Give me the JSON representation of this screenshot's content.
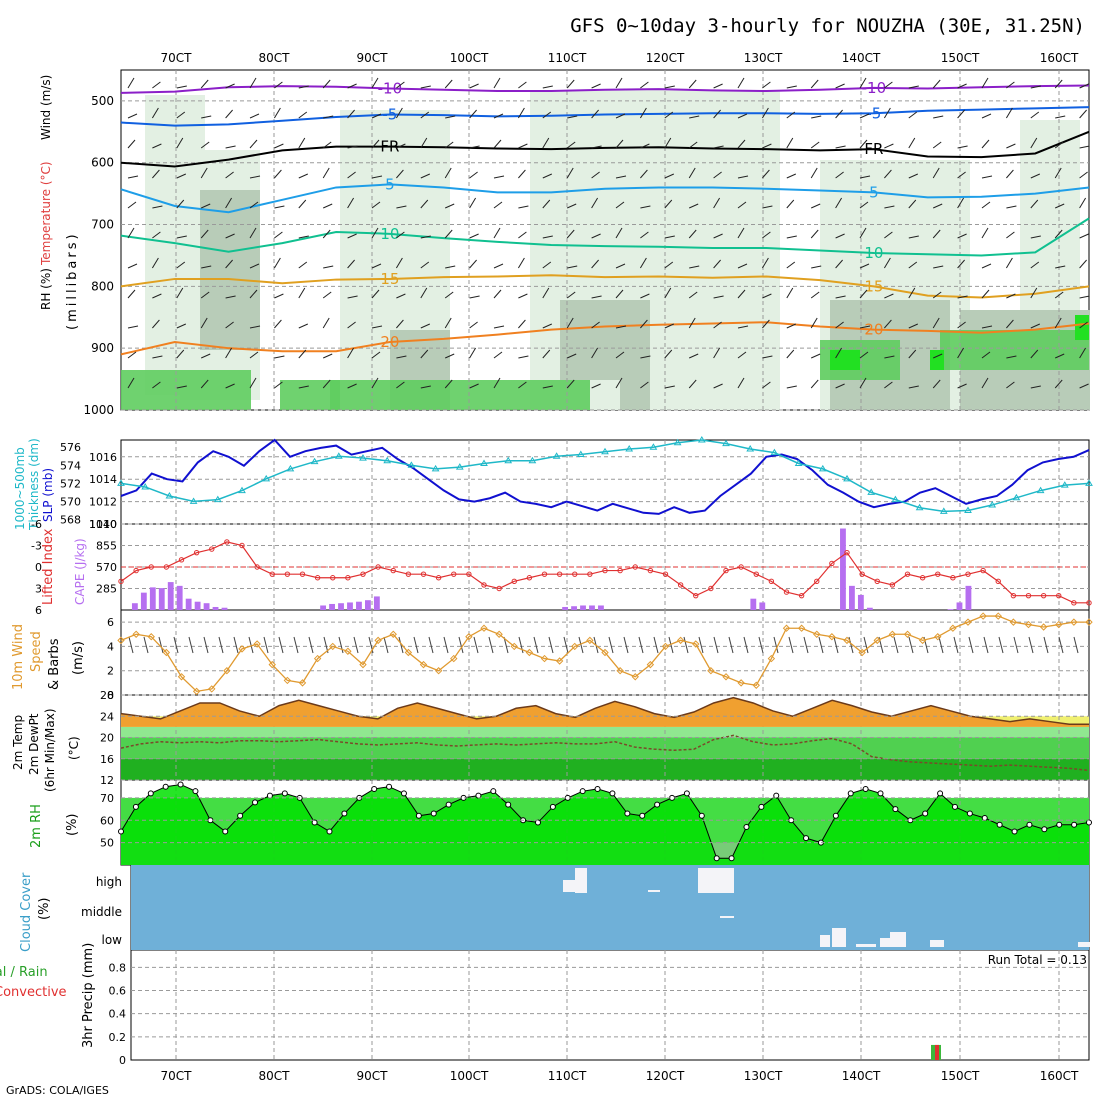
{
  "title": "GFS 0~10day 3-hourly for NOUZHA (30E, 31.25N)",
  "footer": "GrADS: COLA/IGES",
  "x_ticks": [
    "70CT",
    "80CT",
    "90CT",
    "100CT",
    "110CT",
    "120CT",
    "130CT",
    "140CT",
    "150CT",
    "160CT"
  ],
  "colors": {
    "rh_light": "#e3f0e3",
    "rh_mid": "#b8ccb8",
    "rh_green": "#5fcd5f",
    "rh_bright": "#22e022",
    "slp": "#1010d0",
    "thick": "#1fb8c8",
    "lifted": "#e03030",
    "cape": "#b66ff0",
    "wind": "#e09a30",
    "temp": "#f0a030",
    "dew_bands": [
      "#f0f070",
      "#90e890",
      "#50d050",
      "#20b020"
    ],
    "rh2m": [
      "#00e000",
      "#44dd44",
      "#77cc77"
    ],
    "cloud": "#6fb0d8"
  },
  "panels": {
    "profile": {
      "ylabels": [
        "RH (%)",
        "Temperature (°C)",
        "Wind (m/s)",
        "(millibars)"
      ],
      "yticks": [
        "500",
        "600",
        "700",
        "800",
        "900",
        "1000"
      ],
      "contours": [
        {
          "label": "-10",
          "color": "#8b1fc8",
          "level_hpa": [
            487,
            485,
            478,
            476,
            477,
            480,
            482,
            484,
            484,
            482,
            481,
            483,
            484,
            482,
            479,
            480,
            478,
            476,
            475
          ]
        },
        {
          "label": "-5",
          "color": "#1060e0",
          "level_hpa": [
            535,
            540,
            538,
            532,
            526,
            522,
            523,
            525,
            524,
            522,
            521,
            520,
            520,
            521,
            520,
            516,
            514,
            512,
            510
          ]
        },
        {
          "label": "FR",
          "color": "#000000",
          "level_hpa": [
            600,
            606,
            595,
            580,
            574,
            574,
            575,
            577,
            578,
            576,
            575,
            577,
            578,
            580,
            578,
            590,
            591,
            585,
            550
          ]
        },
        {
          "label": "5",
          "color": "#1e9ee8",
          "level_hpa": [
            643,
            670,
            680,
            660,
            640,
            635,
            640,
            648,
            648,
            642,
            640,
            640,
            642,
            645,
            648,
            656,
            655,
            650,
            640
          ]
        },
        {
          "label": "10",
          "color": "#10c090",
          "level_hpa": [
            718,
            730,
            744,
            730,
            712,
            715,
            722,
            728,
            733,
            735,
            736,
            738,
            738,
            742,
            746,
            748,
            750,
            745,
            690
          ]
        },
        {
          "label": "15",
          "color": "#e0a020",
          "level_hpa": [
            800,
            788,
            788,
            795,
            789,
            788,
            785,
            784,
            782,
            785,
            784,
            786,
            784,
            790,
            800,
            815,
            818,
            812,
            800
          ]
        },
        {
          "label": "20",
          "color": "#f08020",
          "level_hpa": [
            910,
            890,
            900,
            905,
            905,
            890,
            885,
            878,
            870,
            865,
            862,
            860,
            858,
            865,
            870,
            872,
            875,
            870,
            860
          ]
        }
      ]
    },
    "slp": {
      "ylabel_left": "Thickness (dm)",
      "ylabel_left2": "1000~500mb",
      "ylabel_right": "SLP (mb)",
      "yticks_thick": [
        "576",
        "574",
        "572",
        "570",
        "568"
      ],
      "yticks_slp": [
        "1016",
        "1014",
        "1012",
        "1010"
      ]
    },
    "cape": {
      "ylabel_left": "Lifted Index",
      "ylabel_right": "CAPE (J/kg)",
      "yticks_li": [
        "-6",
        "-3",
        "0",
        "3",
        "6"
      ],
      "yticks_cape": [
        "1140",
        "855",
        "570",
        "285"
      ]
    },
    "wind10": {
      "ylabel": "10m Wind",
      "ylabel2": "Speed",
      "ylabel3": "& Barbs",
      "ylabel4": "(m/s)",
      "yticks": [
        "6",
        "4",
        "2",
        "0"
      ]
    },
    "temp2m": {
      "ylabel": "2m Temp",
      "ylabel2": "2m DewPt",
      "ylabel3": "(6hr Min/Max)",
      "ylabel4": "(°C)",
      "yticks": [
        "28",
        "24",
        "20",
        "16",
        "12"
      ]
    },
    "rh2m": {
      "ylabel": "2m RH",
      "ylabel2": "(%)",
      "yticks": [
        "70",
        "60",
        "50"
      ]
    },
    "cloud": {
      "ylabel": "Cloud Cover",
      "ylabel2": "(%)",
      "levels": [
        "high",
        "middle",
        "low"
      ]
    },
    "precip": {
      "ylabel": "3hr Precip (mm)",
      "legend_total": "Total / Rain",
      "legend_conv": "Convective",
      "run_total": "Run Total = 0.13",
      "yticks": [
        "0.8",
        "0.6",
        "0.4",
        "0.2",
        "0"
      ]
    }
  },
  "chart_data": [
    {
      "type": "line",
      "title": "1000~500mb Thickness (dm) / SLP (mb)",
      "series": [
        {
          "name": "SLP (mb)",
          "values": [
            1012.5,
            1013.0,
            1014.5,
            1014.0,
            1013.8,
            1015.5,
            1016.5,
            1016.0,
            1015.2,
            1016.5,
            1017.5,
            1016.0,
            1016.5,
            1016.8,
            1017.0,
            1016.2,
            1016.5,
            1016.8,
            1015.8,
            1015.0,
            1014.0,
            1013.0,
            1012.2,
            1012.0,
            1012.3,
            1012.8,
            1012.0,
            1011.8,
            1011.5,
            1012.0,
            1011.6,
            1011.2,
            1011.8,
            1011.4,
            1011.0,
            1010.9,
            1011.5,
            1011.0,
            1011.2,
            1012.5,
            1013.5,
            1014.5,
            1016.0,
            1016.2,
            1015.8,
            1014.8,
            1013.5,
            1012.8,
            1012.0,
            1011.5,
            1011.8,
            1012.0,
            1012.8,
            1013.2,
            1012.5,
            1011.8,
            1012.2,
            1012.5,
            1013.5,
            1014.8,
            1015.5,
            1015.8,
            1016.0,
            1016.6
          ],
          "axis": "right"
        },
        {
          "name": "Thickness (dm)",
          "values": [
            572.0,
            571.6,
            570.6,
            570.0,
            570.2,
            571.2,
            572.5,
            573.6,
            574.4,
            575.0,
            574.8,
            574.5,
            574.0,
            573.6,
            573.8,
            574.2,
            574.5,
            574.5,
            575.0,
            575.2,
            575.5,
            575.8,
            576.0,
            576.5,
            576.8,
            576.4,
            575.8,
            575.4,
            574.2,
            573.6,
            572.5,
            571.0,
            570.2,
            569.3,
            568.9,
            569.0,
            569.6,
            570.4,
            571.2,
            571.8,
            572.0
          ],
          "axis": "left"
        }
      ],
      "ylim_slp": [
        1010,
        1017.5
      ],
      "ylim_thick": [
        567.5,
        576.8
      ]
    },
    {
      "type": "bar",
      "title": "Lifted Index / CAPE (J/kg)",
      "series": [
        {
          "name": "CAPE (J/kg)",
          "values": [
            0,
            90,
            230,
            300,
            290,
            370,
            320,
            150,
            110,
            90,
            40,
            30,
            0,
            0,
            0,
            0,
            0,
            0,
            0,
            0,
            0,
            0,
            60,
            80,
            90,
            100,
            110,
            130,
            180,
            0,
            0,
            0,
            0,
            0,
            0,
            0,
            0,
            0,
            0,
            0,
            0,
            0,
            0,
            0,
            0,
            0,
            0,
            0,
            0,
            40,
            50,
            60,
            60,
            60,
            0,
            0,
            0,
            0,
            0,
            0,
            0,
            0,
            0,
            0,
            0,
            0,
            0,
            0,
            0,
            0,
            150,
            100,
            0,
            0,
            0,
            0,
            0,
            0,
            0,
            0,
            1080,
            320,
            200,
            30,
            0,
            0,
            0,
            0,
            0,
            0,
            0,
            0,
            10,
            100,
            320,
            0,
            0,
            0,
            0,
            0,
            0,
            0,
            0,
            0,
            0,
            0,
            0,
            0
          ]
        },
        {
          "name": "Lifted Index",
          "values": [
            2,
            0.5,
            0,
            0,
            -1,
            -2,
            -2.5,
            -3.5,
            -3,
            0,
            1,
            1,
            1,
            1.5,
            1.5,
            1.5,
            1,
            0,
            0.5,
            1,
            1,
            1.5,
            1,
            1,
            2.5,
            3,
            2,
            1.5,
            1,
            1,
            1,
            1,
            0.5,
            0.5,
            0,
            0.5,
            1,
            2.5,
            4,
            3,
            0.5,
            0,
            1,
            2,
            3.5,
            4,
            2,
            -0.5,
            -2,
            1,
            2,
            2.5,
            1,
            1.5,
            1,
            1.5,
            1,
            0.5,
            2,
            4,
            4,
            4,
            4,
            5,
            5
          ]
        }
      ],
      "ylim_cape": [
        0,
        1140
      ],
      "ylim_li": [
        6,
        -6
      ]
    },
    {
      "type": "line",
      "title": "10m Wind Speed & Barbs (m/s)",
      "series": [
        {
          "name": "Speed",
          "values": [
            4.5,
            5.0,
            4.8,
            3.5,
            1.5,
            0.3,
            0.5,
            2.0,
            3.8,
            4.2,
            2.5,
            1.2,
            1.0,
            3.0,
            4.0,
            3.6,
            2.5,
            4.5,
            5.0,
            3.5,
            2.5,
            2.0,
            3.0,
            4.8,
            5.5,
            5.0,
            4.0,
            3.5,
            3.0,
            2.8,
            4.0,
            4.5,
            3.5,
            2.0,
            1.5,
            2.5,
            4.0,
            4.5,
            4.2,
            2.0,
            1.5,
            1.0,
            0.8,
            3.0,
            5.5,
            5.5,
            5.0,
            4.8,
            4.5,
            3.5,
            4.5,
            5.0,
            5.0,
            4.5,
            4.8,
            5.5,
            6.0,
            6.5,
            6.5,
            6.0,
            5.8,
            5.6,
            5.8,
            6.0,
            6.0
          ]
        }
      ],
      "ylim": [
        0,
        7
      ]
    },
    {
      "type": "area",
      "title": "2m Temp / 2m DewPt (6hr Min/Max) (°C)",
      "series": [
        {
          "name": "2m Temp",
          "values": [
            24.5,
            24.0,
            23.5,
            25.0,
            26.5,
            26.5,
            25.0,
            24.0,
            26.0,
            27.0,
            26.0,
            25.0,
            24.0,
            23.5,
            25.5,
            26.5,
            25.5,
            24.5,
            23.5,
            24.0,
            25.5,
            26.0,
            24.5,
            23.8,
            25.5,
            26.8,
            25.8,
            24.5,
            23.8,
            24.8,
            26.5,
            27.5,
            26.5,
            25.0,
            24.0,
            25.5,
            27.0,
            26.0,
            24.8,
            24.0,
            25.0,
            26.0,
            25.0,
            24.0,
            23.5,
            23.0,
            23.5,
            23.0,
            22.5,
            22.5
          ]
        },
        {
          "name": "2m DewPt",
          "values": [
            18.0,
            18.8,
            19.2,
            19.0,
            19.2,
            19.0,
            19.4,
            19.4,
            19.2,
            19.4,
            19.6,
            19.2,
            18.8,
            18.6,
            18.8,
            19.0,
            18.6,
            18.4,
            18.6,
            18.8,
            18.6,
            18.8,
            19.0,
            18.8,
            18.8,
            19.2,
            18.2,
            17.8,
            17.6,
            17.8,
            19.6,
            20.4,
            19.2,
            18.6,
            18.8,
            19.4,
            19.8,
            18.8,
            16.4,
            15.8,
            15.4,
            15.2,
            15.0,
            14.8,
            14.6,
            14.8,
            14.6,
            14.4,
            14.2,
            13.8
          ]
        }
      ],
      "ylim": [
        12,
        28
      ]
    },
    {
      "type": "area",
      "title": "2m RH (%)",
      "series": [
        {
          "name": "2m RH",
          "values": [
            55,
            66,
            72,
            75,
            76,
            73,
            60,
            55,
            62,
            68,
            71,
            72,
            70,
            59,
            55,
            63,
            70,
            74,
            75,
            72,
            62,
            63,
            67,
            70,
            71,
            73,
            67,
            60,
            59,
            66,
            70,
            73,
            74,
            72,
            63,
            62,
            67,
            70,
            72,
            62,
            43,
            43,
            57,
            66,
            71,
            60,
            52,
            50,
            62,
            72,
            74,
            72,
            65,
            60,
            63,
            72,
            66,
            63,
            61,
            58,
            55,
            58,
            56,
            58,
            58,
            59
          ]
        }
      ],
      "ylim": [
        40,
        78
      ]
    },
    {
      "type": "bar",
      "title": "Cloud Cover (%)",
      "series": [
        {
          "name": "high",
          "values": [
            0,
            0,
            0,
            0,
            0,
            0,
            0,
            0,
            0,
            0,
            0,
            0,
            0,
            0,
            0,
            0,
            0,
            0,
            0,
            0,
            0,
            0,
            0,
            0,
            0,
            0,
            0,
            0,
            0,
            0,
            0,
            0,
            0,
            0,
            0,
            0,
            0,
            0,
            0,
            0,
            0,
            0,
            0,
            0,
            0,
            0,
            0,
            0,
            0,
            0,
            0,
            0,
            0,
            0,
            0,
            0,
            0,
            0,
            0,
            0,
            0,
            0,
            0,
            0,
            0,
            0,
            0,
            0,
            0,
            0,
            0,
            0,
            0,
            0,
            0,
            0,
            0,
            0,
            0,
            0,
            0,
            0,
            0,
            0,
            0,
            0,
            0,
            0,
            0,
            0,
            0,
            0,
            0,
            0,
            0,
            0,
            0,
            0,
            0,
            0,
            0,
            0,
            0,
            0,
            0,
            0,
            0,
            0
          ]
        }
      ]
    },
    {
      "type": "bar",
      "title": "3hr Precip (mm)",
      "series": [
        {
          "name": "Total / Rain",
          "values": [
            0.13
          ]
        },
        {
          "name": "Convective",
          "values": [
            0.13
          ]
        }
      ],
      "ylim": [
        0,
        0.95
      ]
    }
  ]
}
